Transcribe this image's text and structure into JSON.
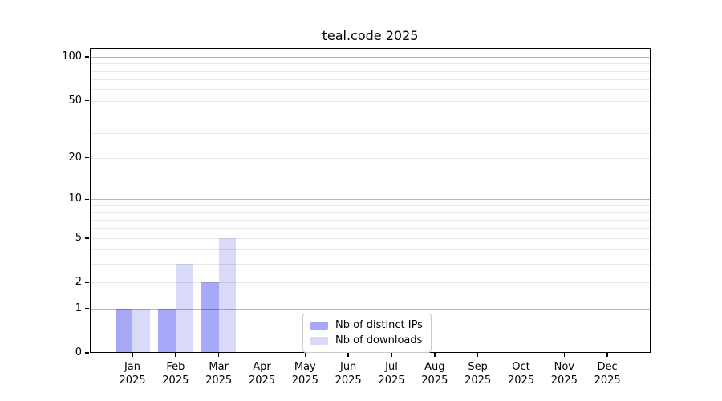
{
  "chart_data": {
    "type": "bar",
    "title": "teal.code 2025",
    "xlabel": "",
    "ylabel": "",
    "categories": [
      "Jan",
      "Feb",
      "Mar",
      "Apr",
      "May",
      "Jun",
      "Jul",
      "Aug",
      "Sep",
      "Oct",
      "Nov",
      "Dec"
    ],
    "x_year": "2025",
    "series": [
      {
        "name": "Nb of distinct IPs",
        "color": "#a8a8f8",
        "values": [
          1,
          1,
          2,
          0,
          0,
          0,
          0,
          0,
          0,
          0,
          0,
          0
        ]
      },
      {
        "name": "Nb of downloads",
        "color": "#d9d9f8",
        "values": [
          1,
          3,
          5,
          0,
          0,
          0,
          0,
          0,
          0,
          0,
          0,
          0
        ]
      }
    ],
    "y_ticks": [
      0,
      1,
      2,
      5,
      10,
      20,
      50,
      100
    ],
    "y_major_gridlines": [
      1,
      10,
      100
    ],
    "y_minor_gridlines": [
      2,
      3,
      4,
      5,
      6,
      7,
      8,
      9,
      20,
      30,
      40,
      50,
      60,
      70,
      80,
      90
    ],
    "scale": "log1p",
    "ylim": [
      0,
      115
    ],
    "grid": true,
    "legend_position": "lower center inside"
  }
}
